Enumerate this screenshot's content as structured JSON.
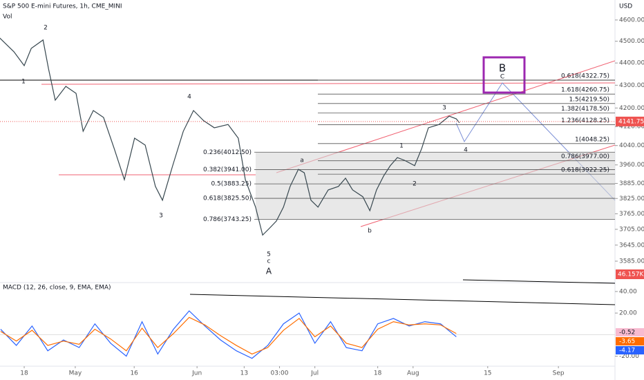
{
  "header": {
    "title": "S&P 500 E-mini Futures, 1h, CME_MINI",
    "volume_label": "Vol",
    "currency": "USD"
  },
  "chart_data": [
    {
      "type": "line",
      "color": "#37474f",
      "ylog": true,
      "x": [
        -6.2,
        -2.6,
        0,
        1.8,
        4.8,
        6.2,
        7.9,
        10.6,
        13.2,
        15,
        17.6,
        20.2,
        22.9,
        25.5,
        28.1,
        30.8,
        33.4,
        35.2,
        37.8,
        40.5,
        43.1,
        45.7,
        48.4,
        51.9,
        54.5,
        56.3,
        58.9,
        60.7,
        62.5,
        64.2,
        66,
        67.7,
        69.8,
        71.3,
        73,
        74.8,
        77.4,
        80,
        81.8,
        83.6,
        86.2,
        88,
        89.7,
        91.5,
        93.2,
        95,
        96.8,
        99.4,
        101.2,
        102.9,
        105.6,
        108.2,
        110,
        110.8
      ],
      "values": [
        4515,
        4451,
        4388,
        4467,
        4506,
        4373,
        4234,
        4295,
        4264,
        4100,
        4189,
        4159,
        4028,
        3900,
        4071,
        4042,
        3873,
        3818,
        3957,
        4100,
        4189,
        4145,
        4115,
        4129,
        4071,
        3900,
        3791,
        3683,
        3710,
        3737,
        3791,
        3873,
        3942,
        3928,
        3818,
        3791,
        3859,
        3873,
        3906,
        3859,
        3832,
        3777,
        3859,
        3915,
        3957,
        3990,
        3979,
        3957,
        4028,
        4115,
        4129,
        4165,
        4153,
        4136
      ],
      "xlim": [
        -6.16,
        150.4
      ],
      "ylim": [
        3509,
        4696
      ],
      "xticks": [
        {
          "value": 0,
          "label": "18"
        },
        {
          "value": 13,
          "label": "May"
        },
        {
          "value": 28,
          "label": "16"
        },
        {
          "value": 44,
          "label": "Jun"
        },
        {
          "value": 56,
          "label": "13"
        },
        {
          "value": 65,
          "label": "03:00"
        },
        {
          "value": 74,
          "label": "Jul"
        },
        {
          "value": 90,
          "label": "18"
        },
        {
          "value": 99,
          "label": "Aug"
        },
        {
          "value": 118,
          "label": "15"
        },
        {
          "value": 136,
          "label": "Sep"
        }
      ],
      "yticks": [
        {
          "value": 4600,
          "label": "4600.00"
        },
        {
          "value": 4500,
          "label": "4500.00"
        },
        {
          "value": 4400,
          "label": "4400.00"
        },
        {
          "value": 4300,
          "label": "4300.00"
        },
        {
          "value": 4200,
          "label": "4200.00"
        },
        {
          "value": 4120,
          "label": "4120.00"
        },
        {
          "value": 4040,
          "label": "4040.00"
        },
        {
          "value": 3960,
          "label": "3960.00"
        },
        {
          "value": 3885,
          "label": "3885.00"
        },
        {
          "value": 3825,
          "label": "3825.00"
        },
        {
          "value": 3765,
          "label": "3765.00"
        },
        {
          "value": 3705,
          "label": "3705.00"
        },
        {
          "value": 3645,
          "label": "3645.00"
        },
        {
          "value": 3585,
          "label": "3585.00"
        }
      ],
      "last_price": {
        "value": 4141.75,
        "label": "4141.75"
      },
      "volume_tag": "46.157K",
      "levels_left": [
        {
          "value": 4012.5,
          "label": "0.236(4012.50)"
        },
        {
          "value": 3941,
          "label": "0.382(3941.00)"
        },
        {
          "value": 3883.25,
          "label": "0.5(3883.25)"
        },
        {
          "value": 3825.5,
          "label": "0.618(3825.50)"
        },
        {
          "value": 3743.25,
          "label": "0.786(3743.25)"
        }
      ],
      "levels_right": [
        {
          "value": 4322.75,
          "label": "0.618(4322.75)"
        },
        {
          "value": 4260.75,
          "label": "1.618(4260.75)"
        },
        {
          "value": 4219.5,
          "label": "1.5(4219.50)"
        },
        {
          "value": 4178.5,
          "label": "1.382(4178.50)"
        },
        {
          "value": 4128.25,
          "label": "1.236(4128.25)"
        },
        {
          "value": 4048.25,
          "label": "1(4048.25)"
        },
        {
          "value": 3977,
          "label": "0.786(3977.00)"
        },
        {
          "value": 3922.25,
          "label": "0.618(3922.25)"
        }
      ]
    },
    {
      "type": "line",
      "title": "MACD (12, 26, close, 9, EMA, EMA)",
      "x": [
        -6,
        -2,
        2,
        6,
        10,
        14,
        18,
        22,
        26,
        30,
        34,
        38,
        42,
        46,
        50,
        54,
        58,
        62,
        66,
        70,
        74,
        78,
        82,
        86,
        90,
        94,
        98,
        102,
        106,
        110
      ],
      "series": [
        {
          "color": "#2962ff",
          "values": [
            5,
            -10,
            8,
            -15,
            -5,
            -12,
            10,
            -8,
            -20,
            12,
            -18,
            5,
            22,
            8,
            -5,
            -15,
            -22,
            -10,
            10,
            20,
            -8,
            12,
            -12,
            -15,
            10,
            15,
            8,
            12,
            10,
            -2
          ]
        },
        {
          "color": "#ff6d00",
          "values": [
            3,
            -6,
            4,
            -10,
            -6,
            -9,
            5,
            -4,
            -15,
            6,
            -12,
            1,
            16,
            9,
            -1,
            -10,
            -18,
            -12,
            4,
            15,
            -2,
            8,
            -8,
            -12,
            5,
            12,
            9,
            10,
            9,
            1
          ]
        }
      ],
      "xlim": [
        -6.16,
        150.4
      ],
      "ylim": [
        -28,
        47
      ],
      "yticks": [
        {
          "value": 40,
          "label": "40.00"
        },
        {
          "value": 20,
          "label": "20.00"
        },
        {
          "value": -20,
          "label": "-20.00"
        }
      ],
      "tags": [
        {
          "value": -0.52,
          "label": "-0.52",
          "color": "#f8bbd0"
        },
        {
          "value": -3.65,
          "label": "-3.65",
          "color": "#ff6d00"
        },
        {
          "value": -4.17,
          "label": "-4.17",
          "color": "#2962ff"
        }
      ]
    }
  ],
  "annotations": {
    "waves": [
      "2",
      "1",
      "4",
      "3",
      "a",
      "b",
      "5",
      "c",
      "A",
      "1",
      "2",
      "3",
      "4",
      "B",
      "C"
    ]
  }
}
